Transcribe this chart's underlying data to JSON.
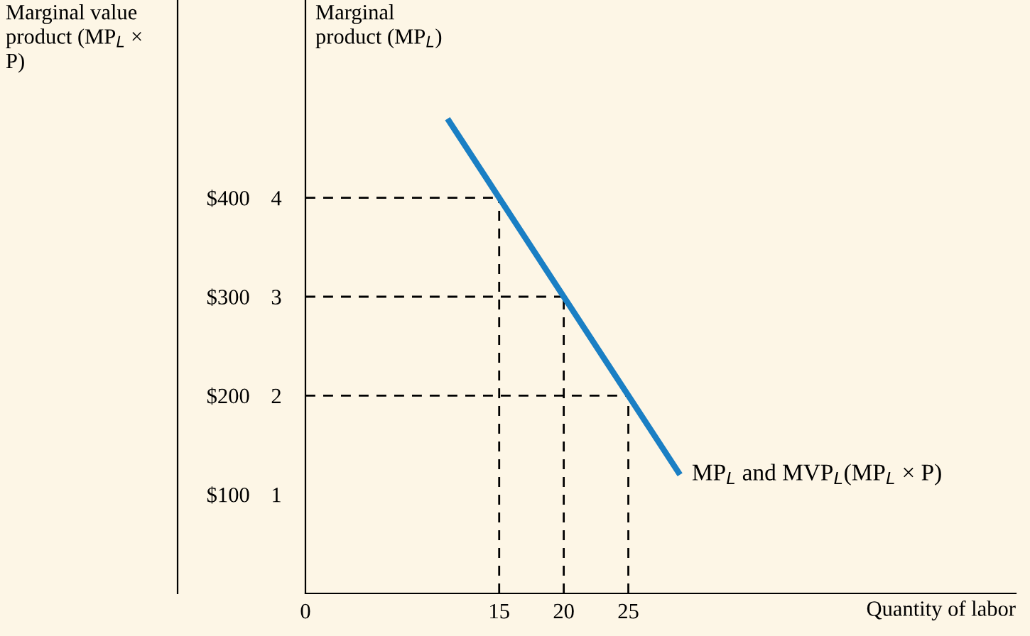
{
  "chart_data": {
    "type": "line",
    "ylabel": "Marginal product (MP$_{L}$)",
    "y2label": "Marginal value product (MP$_{L}$ × P)",
    "xlabel": "Quantity of labor",
    "x": [
      11,
      15,
      20,
      25,
      29
    ],
    "series": [
      {
        "name": "MP$_{L}$ and MVP$_{L}$(MP$_{L}$ × P)",
        "color": "#1a7fc4",
        "values": [
          4.8,
          4,
          3,
          2,
          1.2
        ]
      }
    ],
    "xlim": [
      0,
      55
    ],
    "ylim": [
      0,
      6
    ],
    "xticks": [
      0,
      15,
      20,
      25
    ],
    "yticks": [
      1,
      2,
      3,
      4
    ],
    "y2lim": [
      0,
      600
    ],
    "y2ticks": [
      {
        "value": 100,
        "label": "$100"
      },
      {
        "value": 200,
        "label": "$200"
      },
      {
        "value": 300,
        "label": "$300"
      },
      {
        "value": 400,
        "label": "$400"
      }
    ],
    "ref_lines": [
      {
        "axis": "y",
        "value": 4,
        "color": "#000000",
        "line_style": "dashed"
      },
      {
        "axis": "y",
        "value": 3,
        "color": "#000000",
        "line_style": "dashed"
      },
      {
        "axis": "y",
        "value": 2,
        "color": "#000000",
        "line_style": "dashed"
      },
      {
        "axis": "x",
        "value": 15,
        "color": "#000000",
        "line_style": "dashed"
      },
      {
        "axis": "x",
        "value": 20,
        "color": "#000000",
        "line_style": "dashed"
      },
      {
        "axis": "x",
        "value": 25,
        "color": "#000000",
        "line_style": "dashed"
      }
    ],
    "grid": false,
    "legend": false,
    "marker": "none",
    "line_style": "solid"
  }
}
